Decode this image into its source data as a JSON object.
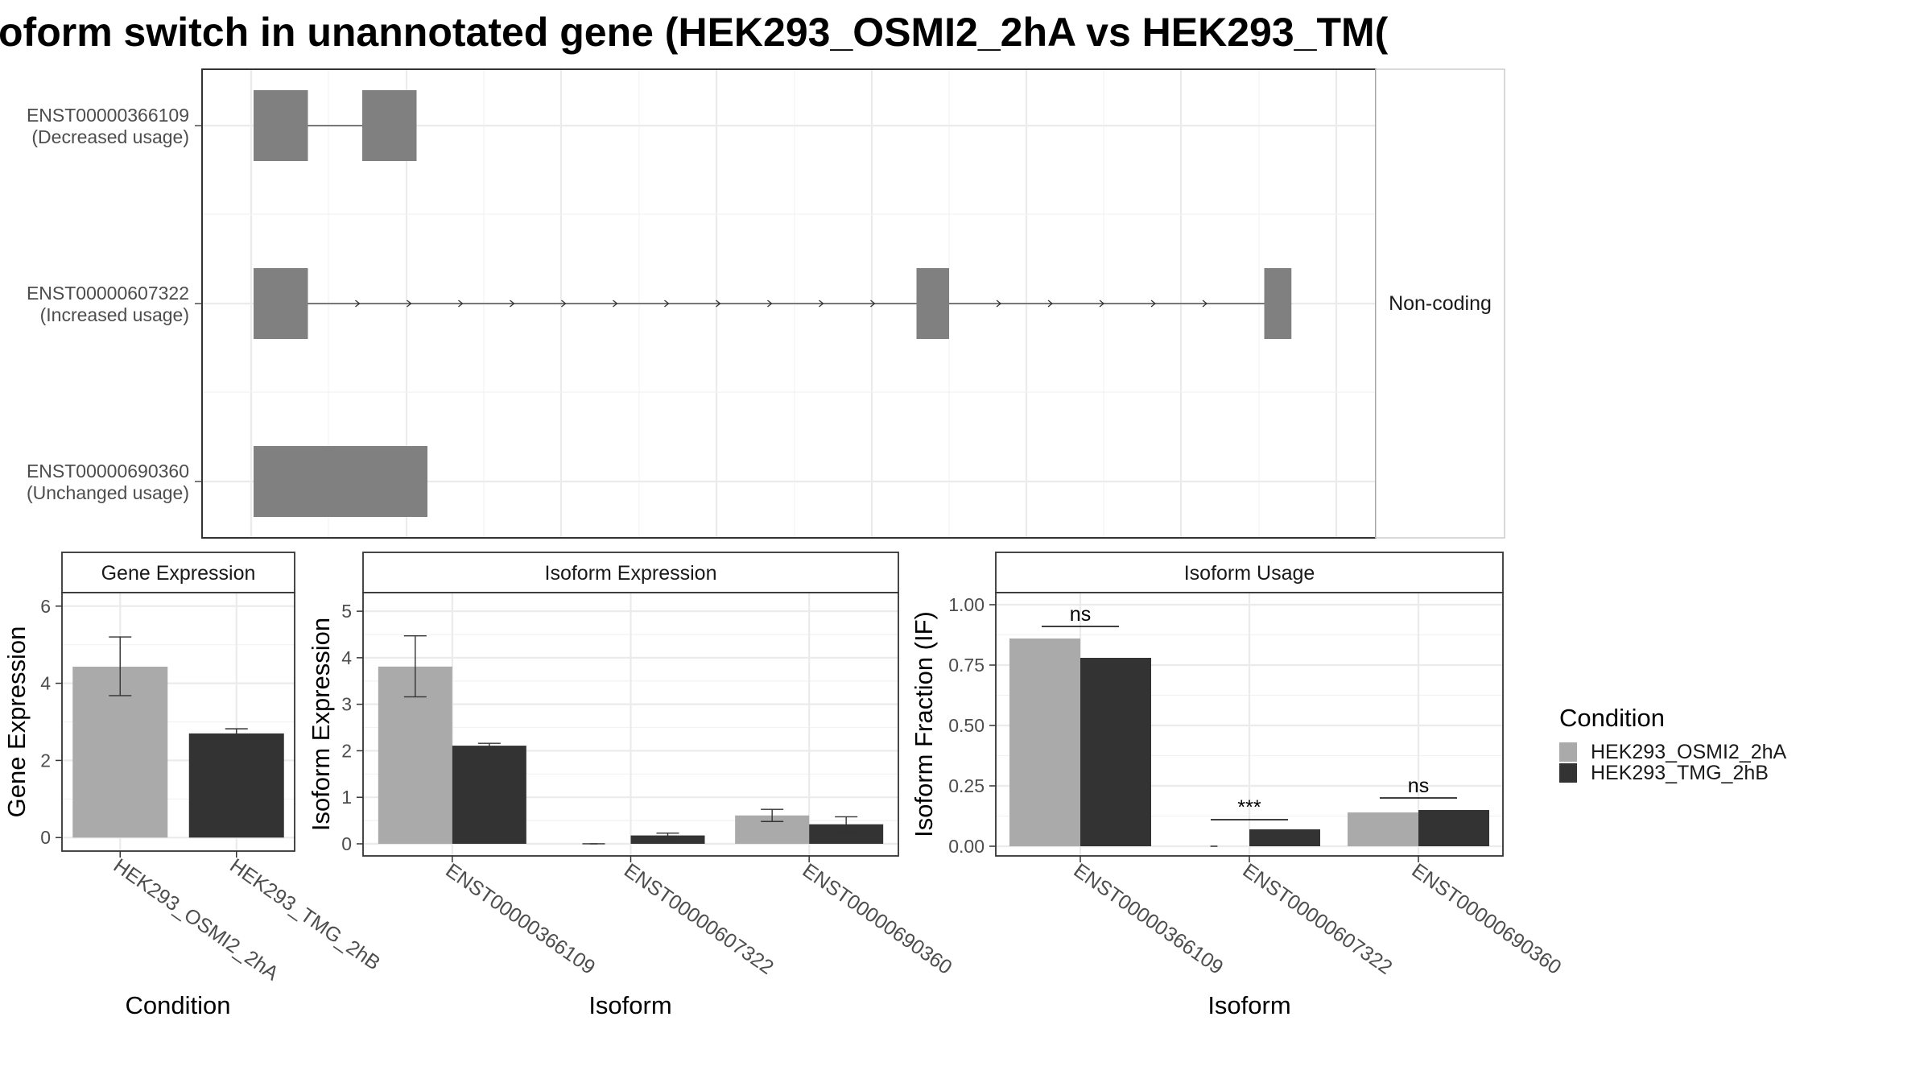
{
  "title": "oform switch in unannotated gene (HEK293_OSMI2_2hA vs HEK293_TM(",
  "colors": {
    "condition_a": "#aaaaaa",
    "condition_b": "#333333",
    "exon": "#808080",
    "panel_border": "#333333",
    "strip_bg": "#ffffff",
    "grid": "#ebebeb",
    "text": "#4d4d4d"
  },
  "legend": {
    "title": "Condition",
    "entries": [
      "HEK293_OSMI2_2hA",
      "HEK293_TMG_2hB"
    ]
  },
  "chart_data": [
    {
      "type": "gene-structure",
      "strip_label": "Non-coding",
      "x_domain": [
        0,
        100
      ],
      "isoforms": [
        {
          "id": "ENST00000366109",
          "usage": "(Decreased usage)",
          "exons": [
            [
              0,
              5
            ],
            [
              10,
              15
            ]
          ],
          "arrow_intron": false
        },
        {
          "id": "ENST00000607322",
          "usage": "(Increased usage)",
          "exons": [
            [
              0,
              5
            ],
            [
              61,
              64
            ],
            [
              93,
              95.5
            ]
          ],
          "arrow_intron": true
        },
        {
          "id": "ENST00000690360",
          "usage": "(Unchanged usage)",
          "exons": [
            [
              0,
              16
            ]
          ],
          "arrow_intron": false
        }
      ]
    },
    {
      "type": "bar",
      "strip_title": "Gene Expression",
      "xlabel": "Condition",
      "ylabel": "Gene Expression",
      "ylim": [
        -0.35,
        6.35
      ],
      "yticks": [
        0,
        2,
        4,
        6
      ],
      "categories": [
        "HEK293_OSMI2_2hA",
        "HEK293_TMG_2hB"
      ],
      "values": [
        4.43,
        2.7
      ],
      "errors": [
        [
          3.68,
          5.2
        ],
        [
          2.61,
          2.82
        ]
      ]
    },
    {
      "type": "bar",
      "strip_title": "Isoform Expression",
      "xlabel": "Isoform",
      "ylabel": "Isoform Expression",
      "ylim": [
        -0.26,
        5.4
      ],
      "yticks": [
        0,
        1,
        2,
        3,
        4,
        5
      ],
      "categories": [
        "ENST00000366109",
        "ENST00000607322",
        "ENST00000690360"
      ],
      "series": [
        {
          "name": "HEK293_OSMI2_2hA",
          "values": [
            3.81,
            0.0,
            0.61
          ],
          "errors": [
            [
              3.16,
              4.47
            ],
            [
              0.0,
              0.0
            ],
            [
              0.48,
              0.74
            ]
          ]
        },
        {
          "name": "HEK293_TMG_2hB",
          "values": [
            2.11,
            0.18,
            0.42
          ],
          "errors": [
            [
              2.06,
              2.16
            ],
            [
              0.13,
              0.23
            ],
            [
              0.26,
              0.58
            ]
          ]
        }
      ]
    },
    {
      "type": "bar",
      "strip_title": "Isoform Usage",
      "xlabel": "Isoform",
      "ylabel": "Isoform Fraction (IF)",
      "ylim": [
        -0.04,
        1.05
      ],
      "yticks": [
        "0.00",
        "0.25",
        "0.50",
        "0.75",
        "1.00"
      ],
      "categories": [
        "ENST00000366109",
        "ENST00000607322",
        "ENST00000690360"
      ],
      "series": [
        {
          "name": "HEK293_OSMI2_2hA",
          "values": [
            0.86,
            0.0,
            0.14
          ]
        },
        {
          "name": "HEK293_TMG_2hB",
          "values": [
            0.78,
            0.07,
            0.15
          ]
        }
      ],
      "significance": [
        {
          "category": "ENST00000366109",
          "label": "ns",
          "y": 0.91
        },
        {
          "category": "ENST00000607322",
          "label": "***",
          "y": 0.11
        },
        {
          "category": "ENST00000690360",
          "label": "ns",
          "y": 0.2
        }
      ]
    }
  ]
}
